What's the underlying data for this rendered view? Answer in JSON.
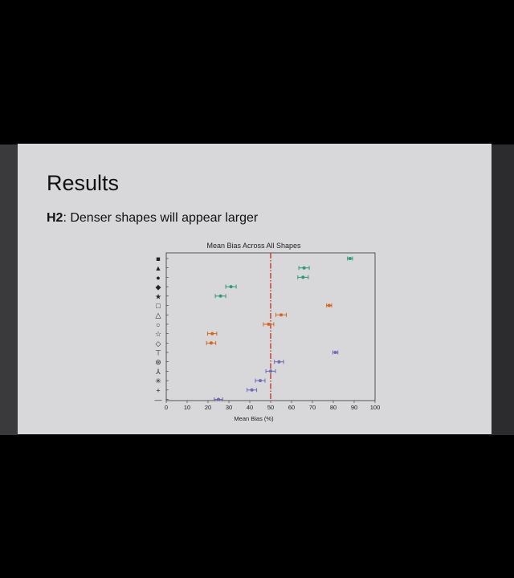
{
  "slide": {
    "title": "Results",
    "subtitle_prefix": "H2",
    "subtitle_rest": ": Denser shapes will appear larger"
  },
  "colors": {
    "green": "#2a9a7a",
    "orange": "#d4671f",
    "purple": "#6b6bb8",
    "reference_line": "#c0392b"
  },
  "chart_data": {
    "type": "scatter",
    "title": "Mean Bias Across All Shapes",
    "xlabel": "Mean Bias (%)",
    "ylabel": "",
    "xlim": [
      0,
      100
    ],
    "xticks": [
      0,
      10,
      20,
      30,
      40,
      50,
      60,
      70,
      80,
      90,
      100
    ],
    "reference_line_x": 50,
    "grid": false,
    "error_bars": true,
    "rows": [
      {
        "marker": "filled-square",
        "glyph": "■",
        "group": "green",
        "value": 88,
        "err": 1.2
      },
      {
        "marker": "filled-triangle",
        "glyph": "▲",
        "group": "green",
        "value": 66,
        "err": 2.5
      },
      {
        "marker": "filled-circle",
        "glyph": "●",
        "group": "green",
        "value": 65.5,
        "err": 2.5
      },
      {
        "marker": "filled-diamond",
        "glyph": "◆",
        "group": "green",
        "value": 31,
        "err": 2.5
      },
      {
        "marker": "filled-star",
        "glyph": "★",
        "group": "green",
        "value": 26,
        "err": 2.5
      },
      {
        "marker": "open-square",
        "glyph": "□",
        "group": "orange",
        "value": 78,
        "err": 1.2
      },
      {
        "marker": "open-triangle",
        "glyph": "△",
        "group": "orange",
        "value": 55,
        "err": 2.5
      },
      {
        "marker": "open-circle",
        "glyph": "○",
        "group": "orange",
        "value": 49,
        "err": 2.5
      },
      {
        "marker": "open-star",
        "glyph": "☆",
        "group": "orange",
        "value": 22,
        "err": 2.2
      },
      {
        "marker": "open-diamond",
        "glyph": "◇",
        "group": "orange",
        "value": 21.5,
        "err": 2.2
      },
      {
        "marker": "t-shape",
        "glyph": "⊤",
        "group": "purple",
        "value": 81,
        "err": 1.2
      },
      {
        "marker": "asterisk-circle",
        "glyph": "⊛",
        "group": "purple",
        "value": 54,
        "err": 2.2
      },
      {
        "marker": "y-shape",
        "glyph": "⅄",
        "group": "purple",
        "value": 50,
        "err": 2.3
      },
      {
        "marker": "x-star",
        "glyph": "✳",
        "group": "purple",
        "value": 45,
        "err": 2.3
      },
      {
        "marker": "plus",
        "glyph": "+",
        "group": "purple",
        "value": 41,
        "err": 2.3
      },
      {
        "marker": "dash",
        "glyph": "—",
        "group": "purple",
        "value": 25,
        "err": 2.0
      }
    ]
  }
}
